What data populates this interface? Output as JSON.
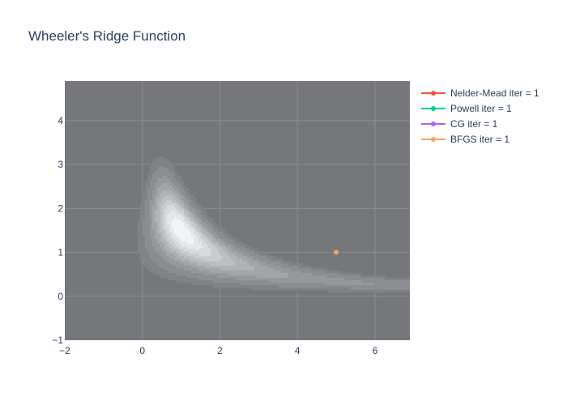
{
  "chart_data": {
    "type": "contour",
    "title": "Wheeler's Ridge Function",
    "xlabel": "",
    "ylabel": "",
    "xlim": [
      -2,
      6.9
    ],
    "ylim": [
      -1,
      4.9
    ],
    "x_ticks": [
      -2,
      0,
      2,
      4,
      6
    ],
    "y_ticks": [
      -1,
      0,
      1,
      2,
      3,
      4
    ],
    "x_tick_labels": [
      "−2",
      "0",
      "2",
      "4",
      "6"
    ],
    "y_tick_labels": [
      "−1",
      "0",
      "1",
      "2",
      "3",
      "4"
    ],
    "grid": true,
    "legend_position": "top-right",
    "background_color": "#75777a",
    "function_minimum": [
      1.0,
      1.5
    ],
    "series": [
      {
        "name": "Nelder-Mead iter = 1",
        "color": "#ef553b",
        "x": [
          5
        ],
        "y": [
          1
        ]
      },
      {
        "name": "Powell iter = 1",
        "color": "#00cc96",
        "x": [
          5
        ],
        "y": [
          1
        ]
      },
      {
        "name": "CG iter = 1",
        "color": "#ab63fa",
        "x": [
          5
        ],
        "y": [
          1
        ]
      },
      {
        "name": "BFGS iter = 1",
        "color": "#ffa15a",
        "x": [
          5
        ],
        "y": [
          1
        ]
      }
    ]
  }
}
